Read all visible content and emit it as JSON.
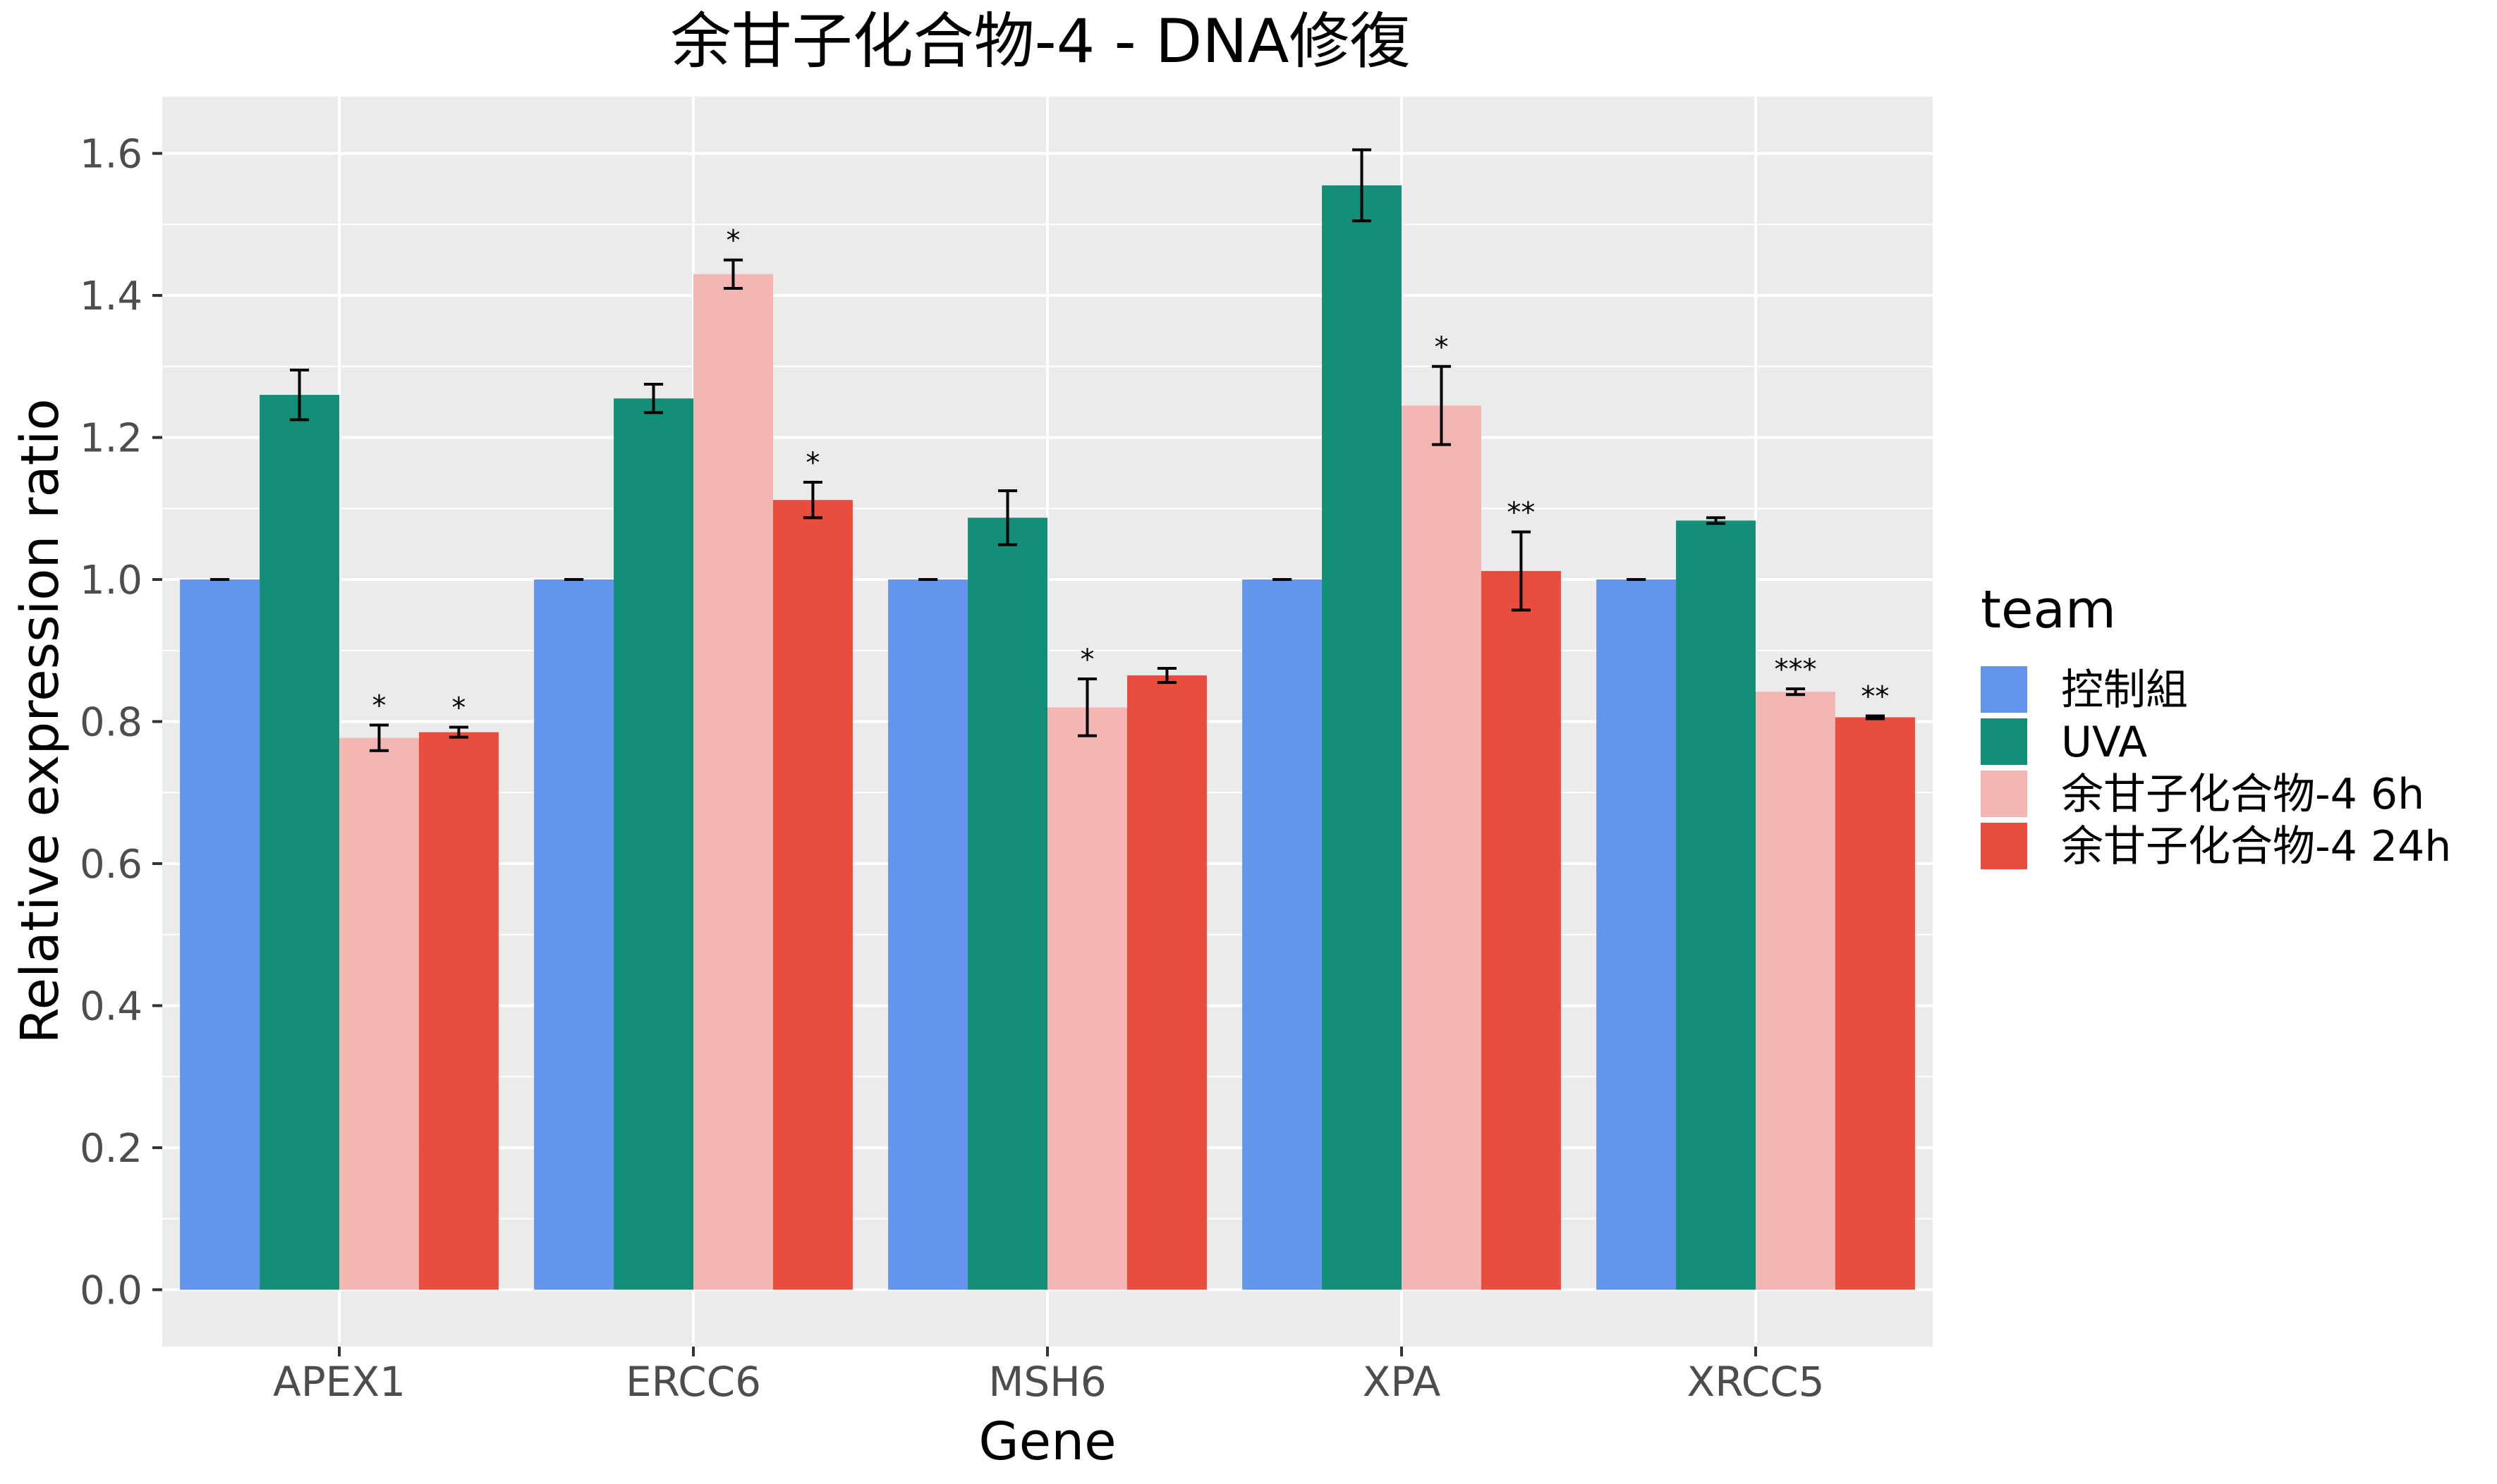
{
  "chart_data": {
    "type": "bar",
    "title": "余甘子化合物-4 - DNA修復",
    "xlabel": "Gene",
    "ylabel": "Relative expression ratio",
    "categories": [
      "APEX1",
      "ERCC6",
      "MSH6",
      "XPA",
      "XRCC5"
    ],
    "ylim": [
      -0.08,
      1.68
    ],
    "yticks": [
      "0.0",
      "0.2",
      "0.4",
      "0.6",
      "0.8",
      "1.0",
      "1.2",
      "1.4",
      "1.6"
    ],
    "grid": true,
    "legend": {
      "title": "team",
      "position": "right"
    },
    "series": [
      {
        "name": "控制組",
        "color": "#6495ED",
        "values": [
          1.0,
          1.0,
          1.0,
          1.0,
          1.0
        ],
        "errors": [
          0.0,
          0.0,
          0.0,
          0.0,
          0.0
        ],
        "sig": [
          "",
          "",
          "",
          "",
          ""
        ]
      },
      {
        "name": "UVA",
        "color": "#138F77",
        "values": [
          1.26,
          1.255,
          1.087,
          1.555,
          1.083
        ],
        "errors": [
          0.035,
          0.02,
          0.038,
          0.05,
          0.004
        ],
        "sig": [
          "",
          "",
          "",
          "",
          ""
        ]
      },
      {
        "name": "余甘子化合物-4 6h",
        "color": "#F4B6B2",
        "values": [
          0.777,
          1.43,
          0.82,
          1.245,
          0.842
        ],
        "errors": [
          0.018,
          0.02,
          0.04,
          0.055,
          0.004
        ],
        "sig": [
          "*",
          "*",
          "*",
          "*",
          "***"
        ]
      },
      {
        "name": "余甘子化合物-4 24h",
        "color": "#E84D3D",
        "values": [
          0.785,
          1.112,
          0.865,
          1.012,
          0.806
        ],
        "errors": [
          0.007,
          0.025,
          0.01,
          0.055,
          0.002
        ],
        "sig": [
          "*",
          "*",
          "",
          "**",
          "**"
        ]
      }
    ]
  }
}
